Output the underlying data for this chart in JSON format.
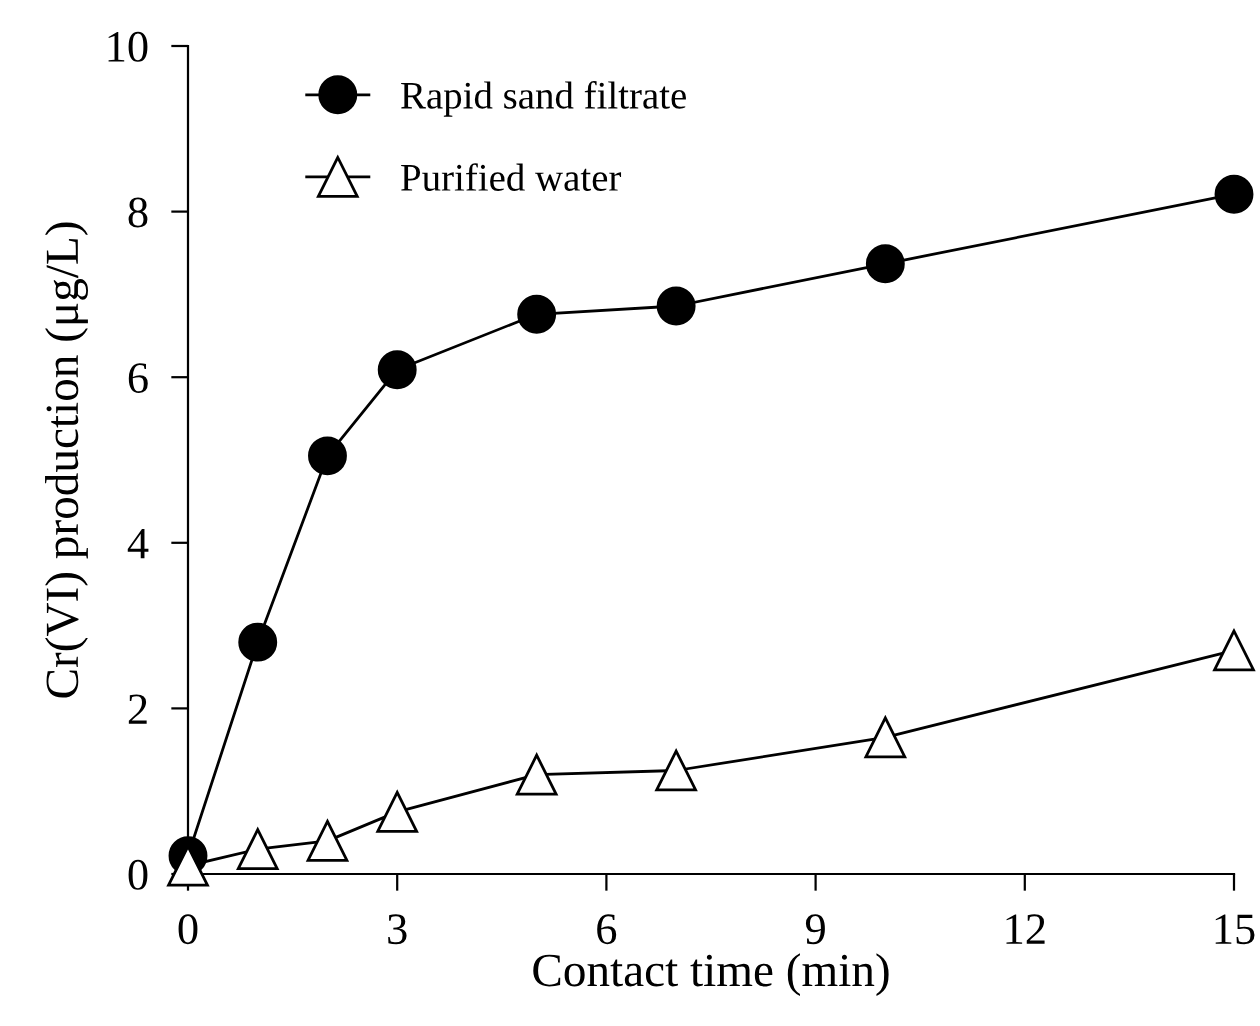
{
  "chart_data": {
    "type": "line",
    "xlabel": "Contact time (min)",
    "ylabel": "Cr(VI) production (μg/L)",
    "x": [
      0,
      1,
      2,
      3,
      5,
      7,
      10,
      15
    ],
    "series": [
      {
        "name": "Rapid sand filtrate",
        "color": "#000000",
        "marker": "circle",
        "values": [
          0.22,
          2.8,
          5.05,
          6.09,
          6.76,
          6.86,
          7.37,
          8.21
        ]
      },
      {
        "name": "Purified water",
        "color": "#000000",
        "marker": "triangle",
        "values": [
          0.1,
          0.3,
          0.4,
          0.75,
          1.2,
          1.25,
          1.65,
          2.7
        ]
      }
    ],
    "xlim": [
      0,
      15
    ],
    "xticks": [
      0,
      3,
      6,
      9,
      12,
      15
    ],
    "ylim": [
      0,
      10
    ],
    "yticks": [
      0,
      2,
      4,
      6,
      8,
      10
    ],
    "grid": false,
    "legend": "top left",
    "line_style": "solid"
  }
}
